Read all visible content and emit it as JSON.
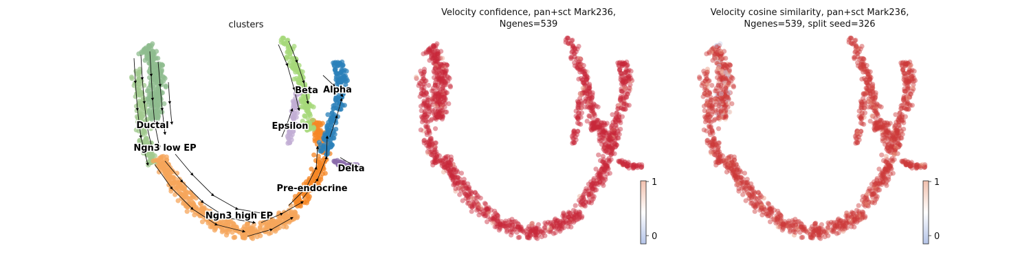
{
  "chart_data": [
    {
      "type": "scatter",
      "title": "clusters",
      "clusters": [
        {
          "name": "Ductal",
          "color": "#8fbc8f"
        },
        {
          "name": "Ngn3 low EP",
          "color": "#a1c98f"
        },
        {
          "name": "Ngn3 high EP",
          "color": "#f6a55b"
        },
        {
          "name": "Pre-endocrine",
          "color": "#f68726"
        },
        {
          "name": "Beta",
          "color": "#a6d87a"
        },
        {
          "name": "Alpha",
          "color": "#2b80b9"
        },
        {
          "name": "Delta",
          "color": "#8a6bab"
        },
        {
          "name": "Epsilon",
          "color": "#c2aed4"
        }
      ],
      "stream_arrows": true
    },
    {
      "type": "scatter",
      "title_line1": "Velocity confidence, pan+sct Mark236,",
      "title_line2": "Ngenes=539",
      "colorbar": {
        "min_label": "0",
        "max_label": "1",
        "colors": [
          "#b4c4e8",
          "#ffffff",
          "#f2c1ae"
        ]
      },
      "point_color": "#c8283a"
    },
    {
      "type": "scatter",
      "title_line1": "Velocity cosine similarity, pan+sct Mark236,",
      "title_line2": "Ngenes=539, split seed=326",
      "colorbar": {
        "min_label": "0",
        "max_label": "1",
        "colors": [
          "#b4c4e8",
          "#ffffff",
          "#f2c1ae"
        ]
      },
      "point_color": "#cc3a3a"
    }
  ]
}
